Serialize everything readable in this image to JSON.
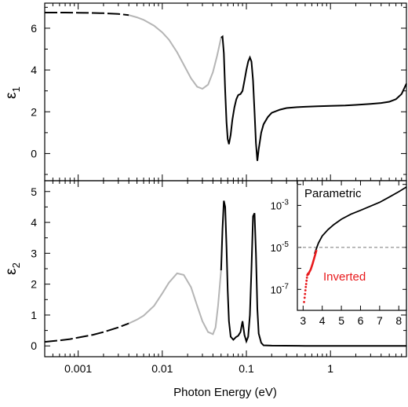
{
  "chart_data": [
    {
      "panel": "top",
      "type": "line",
      "ylabel_base": "ε",
      "ylabel_sub": "1",
      "xscale": "log",
      "xlim": [
        0.0004,
        8
      ],
      "ylim": [
        -1.3,
        7.2
      ],
      "yticks": [
        0,
        2,
        4,
        6
      ],
      "ytick_labels": [
        "0",
        "2",
        "4",
        "6"
      ],
      "grid": false,
      "series": [
        {
          "role": "dashed-low-energy",
          "color": "#000000",
          "dash": true,
          "x": [
            0.0004,
            0.0005,
            0.0007,
            0.001,
            0.0015,
            0.002,
            0.003,
            0.004
          ],
          "y": [
            6.75,
            6.75,
            6.75,
            6.74,
            6.73,
            6.72,
            6.68,
            6.63
          ]
        },
        {
          "role": "gray-extrapolated",
          "color": "#b5b5b5",
          "x": [
            0.004,
            0.005,
            0.006,
            0.008,
            0.01,
            0.012,
            0.015,
            0.018,
            0.022,
            0.026,
            0.03,
            0.035,
            0.04,
            0.045,
            0.05
          ],
          "y": [
            6.63,
            6.52,
            6.4,
            6.12,
            5.8,
            5.45,
            4.85,
            4.25,
            3.6,
            3.2,
            3.1,
            3.3,
            3.9,
            4.7,
            5.55
          ]
        },
        {
          "role": "measured",
          "color": "#000000",
          "x": [
            0.05,
            0.052,
            0.054,
            0.056,
            0.058,
            0.06,
            0.062,
            0.065,
            0.068,
            0.072,
            0.076,
            0.08,
            0.085,
            0.09,
            0.095,
            0.1,
            0.105,
            0.11,
            0.115,
            0.12,
            0.125,
            0.13,
            0.135,
            0.14,
            0.15,
            0.16,
            0.18,
            0.2,
            0.25,
            0.3,
            0.4,
            0.5,
            0.7,
            1,
            1.5,
            2,
            3,
            4,
            5,
            6,
            7,
            8
          ],
          "y": [
            5.55,
            5.6,
            4.8,
            3.0,
            1.5,
            0.7,
            0.45,
            0.9,
            1.6,
            2.2,
            2.6,
            2.8,
            2.85,
            3.0,
            3.5,
            4.0,
            4.4,
            4.6,
            4.4,
            3.5,
            2.0,
            0.5,
            -0.35,
            0.2,
            1.0,
            1.4,
            1.75,
            1.95,
            2.1,
            2.18,
            2.22,
            2.24,
            2.26,
            2.28,
            2.3,
            2.33,
            2.38,
            2.42,
            2.48,
            2.6,
            2.85,
            3.35
          ]
        }
      ]
    },
    {
      "panel": "bottom",
      "type": "line",
      "ylabel_base": "ε",
      "ylabel_sub": "2",
      "xlabel": "Photon Energy (eV)",
      "xscale": "log",
      "xlim": [
        0.0004,
        8
      ],
      "ylim": [
        -0.35,
        5.35
      ],
      "xticks": [
        0.001,
        0.01,
        0.1,
        1
      ],
      "xtick_labels": [
        "0.001",
        "0.01",
        "0.1",
        "1"
      ],
      "yticks": [
        0,
        1,
        2,
        3,
        4,
        5
      ],
      "ytick_labels": [
        "0",
        "1",
        "2",
        "3",
        "4",
        "5"
      ],
      "grid": false,
      "series": [
        {
          "role": "dashed-low-energy",
          "color": "#000000",
          "dash": true,
          "x": [
            0.0004,
            0.0006,
            0.0008,
            0.001,
            0.0015,
            0.002,
            0.003,
            0.004
          ],
          "y": [
            0.13,
            0.18,
            0.22,
            0.27,
            0.36,
            0.45,
            0.6,
            0.73
          ]
        },
        {
          "role": "gray-extrapolated",
          "color": "#b5b5b5",
          "x": [
            0.004,
            0.005,
            0.006,
            0.008,
            0.01,
            0.012,
            0.015,
            0.018,
            0.022,
            0.026,
            0.03,
            0.035,
            0.04,
            0.043,
            0.046,
            0.05
          ],
          "y": [
            0.73,
            0.85,
            0.98,
            1.3,
            1.7,
            2.05,
            2.35,
            2.3,
            1.9,
            1.3,
            0.8,
            0.45,
            0.38,
            0.6,
            1.3,
            2.45
          ]
        },
        {
          "role": "measured",
          "color": "#000000",
          "x": [
            0.05,
            0.052,
            0.054,
            0.056,
            0.058,
            0.06,
            0.062,
            0.065,
            0.07,
            0.075,
            0.08,
            0.085,
            0.09,
            0.095,
            0.1,
            0.105,
            0.11,
            0.115,
            0.12,
            0.125,
            0.13,
            0.135,
            0.14,
            0.15,
            0.16,
            0.2,
            0.5,
            1,
            2,
            5,
            8
          ],
          "y": [
            2.45,
            3.8,
            4.7,
            4.5,
            3.2,
            1.8,
            0.8,
            0.3,
            0.2,
            0.28,
            0.33,
            0.45,
            0.8,
            0.35,
            0.15,
            0.3,
            1.0,
            2.5,
            4.2,
            4.3,
            3.0,
            1.2,
            0.4,
            0.1,
            0.02,
            0.01,
            0.0,
            0.0,
            0.0,
            0.0,
            0.0
          ]
        }
      ]
    },
    {
      "panel": "inset",
      "type": "line",
      "yscale": "log",
      "xlim": [
        2.7,
        8.4
      ],
      "ylim": [
        1e-08,
        0.015
      ],
      "xticks": [
        3,
        4,
        5,
        6,
        7,
        8
      ],
      "xtick_labels": [
        "3",
        "4",
        "5",
        "6",
        "7",
        "8"
      ],
      "yticks": [
        1e-07,
        1e-05,
        0.001
      ],
      "ytick_labels_base": [
        "10",
        "10",
        "10"
      ],
      "ytick_labels_exp": [
        "-7",
        "-5",
        "-3"
      ],
      "reference_line": {
        "y": 1e-05,
        "style": "dashed",
        "color": "#777777"
      },
      "series": [
        {
          "name": "Parametric",
          "color": "#000000",
          "x": [
            3.6,
            3.8,
            4.0,
            4.3,
            4.6,
            5.0,
            5.5,
            6.0,
            6.5,
            7.0,
            7.5,
            8.0,
            8.4
          ],
          "y": [
            5e-06,
            1.6e-05,
            3.5e-05,
            7e-05,
            0.00012,
            0.00022,
            0.00038,
            0.00058,
            0.0009,
            0.0014,
            0.0025,
            0.0045,
            0.0075
          ]
        },
        {
          "name": "Inverted",
          "color": "#e8191c",
          "x": [
            3.3,
            3.4,
            3.5,
            3.6,
            3.7
          ],
          "y": [
            6e-07,
            9e-07,
            1.7e-06,
            3.5e-06,
            7.5e-06
          ]
        },
        {
          "name": "Inverted-scatter",
          "color": "#e8191c",
          "marker": "dot",
          "x": [
            3.05,
            3.08,
            3.1,
            3.12,
            3.14,
            3.16,
            3.18,
            3.2,
            3.22,
            3.25,
            3.28,
            3.3
          ],
          "y": [
            2.5e-08,
            4e-08,
            6e-08,
            9e-08,
            1.3e-07,
            1.8e-07,
            2.6e-07,
            3.6e-07,
            4.8e-07,
            5.5e-07,
            5.3e-07,
            6e-07
          ]
        }
      ],
      "labels": {
        "parametric": "Parametric",
        "inverted": "Inverted"
      },
      "colors": {
        "parametric": "#000000",
        "inverted": "#e8191c"
      }
    }
  ]
}
